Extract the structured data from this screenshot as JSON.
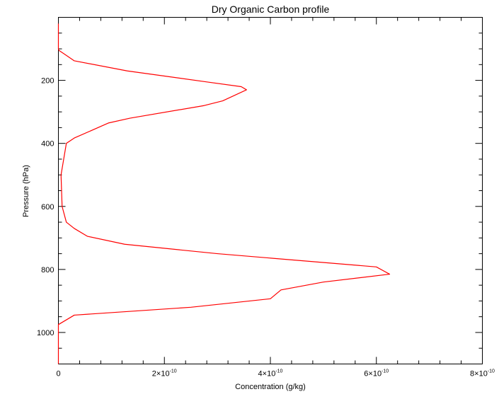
{
  "chart_data": {
    "type": "line",
    "title": "Dry Organic Carbon profile",
    "xlabel": "Concentration (g/kg)",
    "ylabel": "Pressure (hPa)",
    "xlim": [
      0,
      8e-10
    ],
    "ylim": [
      1100,
      0
    ],
    "y_inverted": true,
    "grid": false,
    "x_ticks": [
      {
        "value": 0,
        "label": "0",
        "mantissa": "",
        "exponent": ""
      },
      {
        "value": 2e-10,
        "label": "",
        "mantissa": "2×10",
        "exponent": "-10"
      },
      {
        "value": 4e-10,
        "label": "",
        "mantissa": "4×10",
        "exponent": "-10"
      },
      {
        "value": 6e-10,
        "label": "",
        "mantissa": "6×10",
        "exponent": "-10"
      },
      {
        "value": 8e-10,
        "label": "",
        "mantissa": "8×10",
        "exponent": "-10"
      }
    ],
    "y_ticks": [
      {
        "value": 200,
        "label": "200"
      },
      {
        "value": 400,
        "label": "400"
      },
      {
        "value": 600,
        "label": "600"
      },
      {
        "value": 800,
        "label": "800"
      },
      {
        "value": 1000,
        "label": "1000"
      }
    ],
    "series": [
      {
        "color": "#ff0000",
        "x": [
          0,
          0,
          1e-12,
          1e-11,
          3e-11,
          1.3e-10,
          2.8e-10,
          3.45e-10,
          3.55e-10,
          3.1e-10,
          2.75e-10,
          1.35e-10,
          9.5e-11,
          3e-11,
          1.5e-11,
          5e-12,
          7e-12,
          1.5e-11,
          3e-11,
          5.5e-11,
          1.25e-10,
          3e-10,
          6e-10,
          6.25e-10,
          5e-10,
          4.2e-10,
          4e-10,
          2.5e-10,
          3e-11,
          0,
          0
        ],
        "y": [
          20,
          100,
          105,
          115,
          138,
          170,
          205,
          220,
          230,
          265,
          280,
          320,
          335,
          383,
          400,
          500,
          600,
          650,
          670,
          695,
          720,
          750,
          792,
          815,
          840,
          865,
          893,
          920,
          945,
          975,
          1100
        ]
      }
    ]
  }
}
